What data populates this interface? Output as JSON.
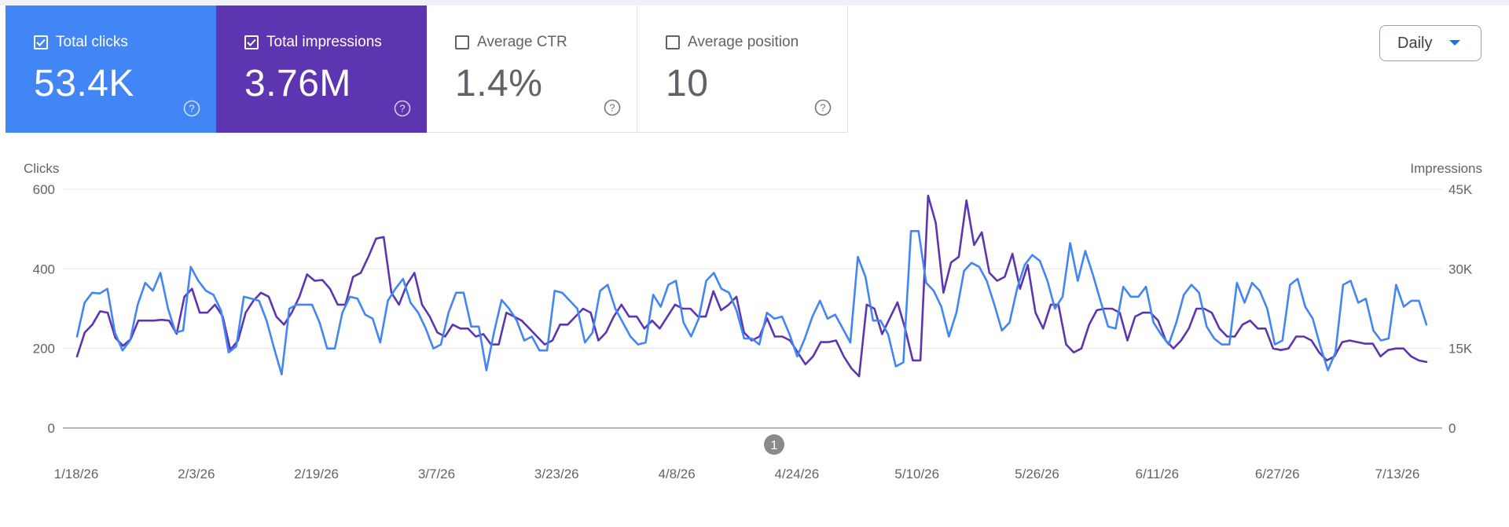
{
  "metrics": [
    {
      "label": "Total clicks",
      "value": "53.4K",
      "checked": true,
      "color": "#4285f4"
    },
    {
      "label": "Total impressions",
      "value": "3.76M",
      "checked": true,
      "color": "#5e35b1"
    },
    {
      "label": "Average CTR",
      "value": "1.4%",
      "checked": false
    },
    {
      "label": "Average position",
      "value": "10",
      "checked": false
    }
  ],
  "period_selector": {
    "label": "Daily"
  },
  "annotation_marker": {
    "label": "1"
  },
  "chart_data": {
    "type": "line",
    "left_axis": {
      "label": "Clicks",
      "ticks": [
        "0",
        "200",
        "400",
        "600"
      ],
      "range": [
        0,
        600
      ]
    },
    "right_axis": {
      "label": "Impressions",
      "ticks": [
        "0",
        "15K",
        "30K",
        "45K"
      ],
      "range": [
        0,
        45000
      ]
    },
    "x_tick_labels": [
      "1/18/26",
      "2/3/26",
      "2/19/26",
      "3/7/26",
      "3/23/26",
      "4/8/26",
      "4/24/26",
      "5/10/26",
      "5/26/26",
      "6/11/26",
      "6/27/26",
      "7/13/26"
    ],
    "grid": true,
    "series": [
      {
        "name": "Clicks",
        "axis": "left",
        "color": "#4285f4",
        "values": [
          230,
          315,
          340,
          338,
          350,
          240,
          195,
          220,
          310,
          365,
          345,
          390,
          300,
          240,
          245,
          405,
          370,
          345,
          335,
          295,
          190,
          205,
          330,
          325,
          320,
          270,
          200,
          135,
          300,
          310,
          310,
          310,
          265,
          200,
          200,
          290,
          330,
          325,
          285,
          275,
          215,
          320,
          350,
          375,
          315,
          290,
          250,
          200,
          210,
          290,
          340,
          340,
          255,
          255,
          145,
          240,
          322,
          300,
          270,
          220,
          230,
          195,
          195,
          345,
          340,
          320,
          300,
          215,
          240,
          345,
          360,
          300,
          265,
          230,
          210,
          215,
          335,
          305,
          360,
          370,
          265,
          230,
          275,
          370,
          390,
          350,
          340,
          295,
          225,
          225,
          210,
          290,
          275,
          280,
          235,
          180,
          225,
          280,
          320,
          275,
          285,
          250,
          215,
          430,
          380,
          270,
          270,
          235,
          155,
          165,
          495,
          495,
          365,
          345,
          305,
          230,
          290,
          395,
          415,
          405,
          370,
          310,
          245,
          265,
          350,
          410,
          435,
          420,
          370,
          300,
          330,
          465,
          370,
          445,
          385,
          320,
          255,
          250,
          355,
          330,
          330,
          355,
          265,
          235,
          210,
          265,
          335,
          360,
          340,
          255,
          225,
          210,
          210,
          365,
          315,
          365,
          345,
          300,
          210,
          220,
          360,
          375,
          305,
          275,
          205,
          145,
          190,
          360,
          370,
          315,
          325,
          245,
          220,
          225,
          360,
          305,
          320,
          320,
          260
        ]
      },
      {
        "name": "Impressions",
        "axis": "right",
        "color": "#5e35b1",
        "values": [
          13500,
          18000,
          19500,
          22000,
          21750,
          17000,
          15500,
          16750,
          20250,
          20250,
          20250,
          20400,
          20250,
          17750,
          24750,
          26250,
          21750,
          21750,
          23250,
          21000,
          14750,
          16500,
          21750,
          24000,
          25500,
          24750,
          21000,
          19500,
          21750,
          24750,
          28950,
          27750,
          27900,
          26250,
          23250,
          23250,
          28500,
          29250,
          32250,
          35700,
          36000,
          25500,
          23250,
          27000,
          29250,
          23250,
          21000,
          18000,
          17250,
          19500,
          18750,
          18750,
          17250,
          17700,
          15750,
          15750,
          21750,
          21000,
          20250,
          18750,
          17250,
          15750,
          16500,
          19500,
          19500,
          21000,
          22500,
          21750,
          16500,
          18000,
          21000,
          23250,
          21000,
          21000,
          18750,
          20250,
          18750,
          21000,
          23250,
          22500,
          22500,
          21000,
          21000,
          25800,
          22200,
          23250,
          24750,
          18000,
          16500,
          17250,
          20700,
          17250,
          17250,
          16500,
          14250,
          12000,
          13500,
          16200,
          16200,
          16500,
          13500,
          11250,
          9750,
          23250,
          22500,
          17700,
          20700,
          23700,
          18750,
          12750,
          12750,
          43800,
          38700,
          25500,
          31200,
          32250,
          42900,
          34500,
          36900,
          29250,
          27750,
          28500,
          32850,
          26250,
          30750,
          21750,
          18750,
          23250,
          23250,
          15750,
          14250,
          15000,
          19500,
          22200,
          22500,
          22500,
          21750,
          16500,
          21000,
          21750,
          21750,
          20250,
          16500,
          15000,
          16500,
          18750,
          22500,
          22500,
          21750,
          18750,
          17250,
          17250,
          19500,
          20250,
          18750,
          18750,
          15000,
          14700,
          15000,
          17250,
          17250,
          16500,
          14250,
          12750,
          13500,
          16200,
          16500,
          16200,
          15900,
          15900,
          13500,
          14700,
          15000,
          15000,
          13500,
          12750,
          12450
        ]
      }
    ]
  }
}
